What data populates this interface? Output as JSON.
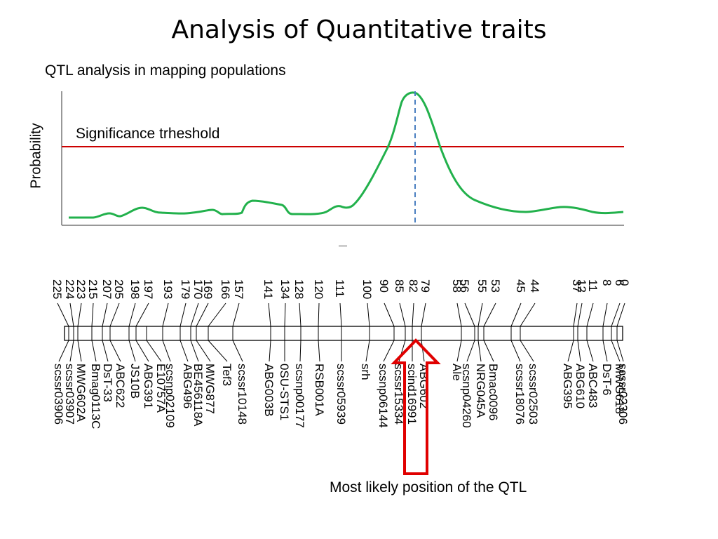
{
  "title": "Analysis of Quantitative traits",
  "subtitle": "QTL analysis in mapping populations",
  "threshold_label": "Significance trheshold",
  "y_axis_label": "Probability",
  "caption": "Most likely position of the QTL",
  "colors": {
    "curve": "#22b14c",
    "threshold": "#cc0000",
    "peak_line": "#4a7fc0",
    "arrow": "#e00000",
    "axis": "#777777"
  },
  "markers": [
    {
      "pos": "225",
      "name": "scssr03906"
    },
    {
      "pos": "224",
      "name": "scssr03907"
    },
    {
      "pos": "223",
      "name": "MWG602A"
    },
    {
      "pos": "215",
      "name": "Bmag0113C"
    },
    {
      "pos": "207",
      "name": "DsT-33"
    },
    {
      "pos": "205",
      "name": "ABC622"
    },
    {
      "pos": "198",
      "name": "JS10B"
    },
    {
      "pos": "197",
      "name": "ABG391"
    },
    {
      "pos": "",
      "name": "E10757A"
    },
    {
      "pos": "193",
      "name": "scsnp02109"
    },
    {
      "pos": "179",
      "name": "ABG496"
    },
    {
      "pos": "170",
      "name": "BE456118A"
    },
    {
      "pos": "169",
      "name": "MWG877"
    },
    {
      "pos": "166",
      "name": "Tef3"
    },
    {
      "pos": "157",
      "name": "scssr10148"
    },
    {
      "pos": "141",
      "name": "ABG003B"
    },
    {
      "pos": "134",
      "name": "0SU-STS1"
    },
    {
      "pos": "128",
      "name": "scsnp00177"
    },
    {
      "pos": "120",
      "name": "RSB001A"
    },
    {
      "pos": "111",
      "name": "scssr05939"
    },
    {
      "pos": "100",
      "name": "srh"
    },
    {
      "pos": "90",
      "name": "scsnp06144"
    },
    {
      "pos": "85",
      "name": "scssr15334"
    },
    {
      "pos": "82",
      "name": "scind16991"
    },
    {
      "pos": "79",
      "name": "ABG602"
    },
    {
      "pos": "58",
      "name": "Ale"
    },
    {
      "pos": "56",
      "name": "scsnp04260"
    },
    {
      "pos": "55",
      "name": "NRG045A"
    },
    {
      "pos": "53",
      "name": "Bmac0096"
    },
    {
      "pos": "45",
      "name": "scssr18076"
    },
    {
      "pos": "44",
      "name": "scssr02503"
    },
    {
      "pos": "37",
      "name": "ABG395"
    },
    {
      "pos": "12",
      "name": "ABG610"
    },
    {
      "pos": "11",
      "name": "ABC483"
    },
    {
      "pos": "8",
      "name": "DsT-6"
    },
    {
      "pos": "6",
      "name": "MWG618"
    },
    {
      "pos": "0",
      "name": "scssr02306"
    }
  ]
}
